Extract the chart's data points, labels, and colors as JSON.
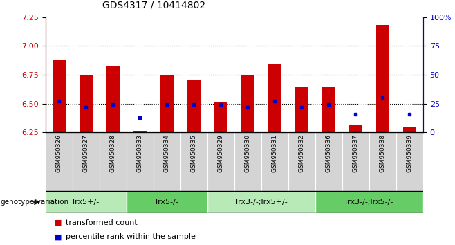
{
  "title": "GDS4317 / 10414802",
  "samples": [
    "GSM950326",
    "GSM950327",
    "GSM950328",
    "GSM950333",
    "GSM950334",
    "GSM950335",
    "GSM950329",
    "GSM950330",
    "GSM950331",
    "GSM950332",
    "GSM950336",
    "GSM950337",
    "GSM950338",
    "GSM950339"
  ],
  "red_values": [
    6.88,
    6.75,
    6.82,
    6.26,
    6.75,
    6.7,
    6.51,
    6.75,
    6.84,
    6.65,
    6.65,
    6.32,
    7.18,
    6.3
  ],
  "blue_values": [
    27,
    22,
    24,
    13,
    24,
    24,
    24,
    22,
    27,
    22,
    24,
    16,
    30,
    16
  ],
  "ylim_left": [
    6.25,
    7.25
  ],
  "ylim_right": [
    0,
    100
  ],
  "yticks_left": [
    6.25,
    6.5,
    6.75,
    7.0,
    7.25
  ],
  "yticks_right": [
    0,
    25,
    50,
    75,
    100
  ],
  "ytick_labels_right": [
    "0",
    "25",
    "50",
    "75",
    "100%"
  ],
  "grid_values": [
    6.5,
    6.75,
    7.0
  ],
  "groups": [
    {
      "label": "lrx5+/-",
      "start": 0,
      "end": 3,
      "color": "#b8eab8"
    },
    {
      "label": "lrx5-/-",
      "start": 3,
      "end": 6,
      "color": "#66cc66"
    },
    {
      "label": "lrx3-/-;lrx5+/-",
      "start": 6,
      "end": 10,
      "color": "#b8eab8"
    },
    {
      "label": "lrx3-/-;lrx5-/-",
      "start": 10,
      "end": 14,
      "color": "#66cc66"
    }
  ],
  "bar_width": 0.5,
  "red_color": "#cc0000",
  "blue_color": "#0000cc",
  "title_fontsize": 10,
  "tick_fontsize": 8,
  "legend_fontsize": 8,
  "sample_fontsize": 6.5,
  "group_fontsize": 8
}
